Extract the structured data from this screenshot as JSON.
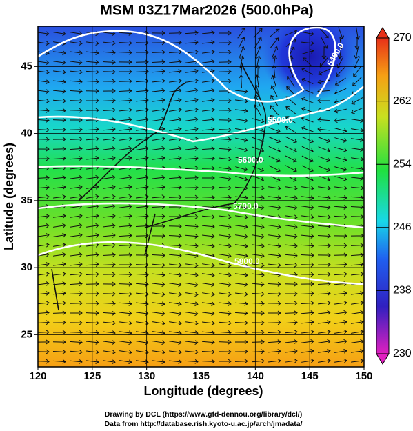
{
  "map": {
    "title": "MSM 03Z17Mar2026 (500.0hPa)",
    "xlabel": "Longitude (degrees)",
    "ylabel": "Latitude  (degrees)",
    "xlim": [
      120,
      150
    ],
    "ylim": [
      22.6,
      48
    ],
    "xticks": [
      120,
      125,
      130,
      135,
      140,
      145,
      150
    ],
    "yticks": [
      25,
      30,
      35,
      40,
      45
    ],
    "colorbar": {
      "lim": [
        230,
        270
      ],
      "ticks": [
        230,
        238,
        246,
        254,
        262,
        270
      ]
    },
    "contour_labels": [
      "5400.0",
      "5500.0",
      "5600.0",
      "5700.0",
      "5800.0"
    ],
    "footer": [
      "Drawing by DCL (https://www.gfd-dennou.org/library/dcl/)",
      "Data from http://database.rish.kyoto-u.ac.jp/arch/jmadata/"
    ]
  }
}
